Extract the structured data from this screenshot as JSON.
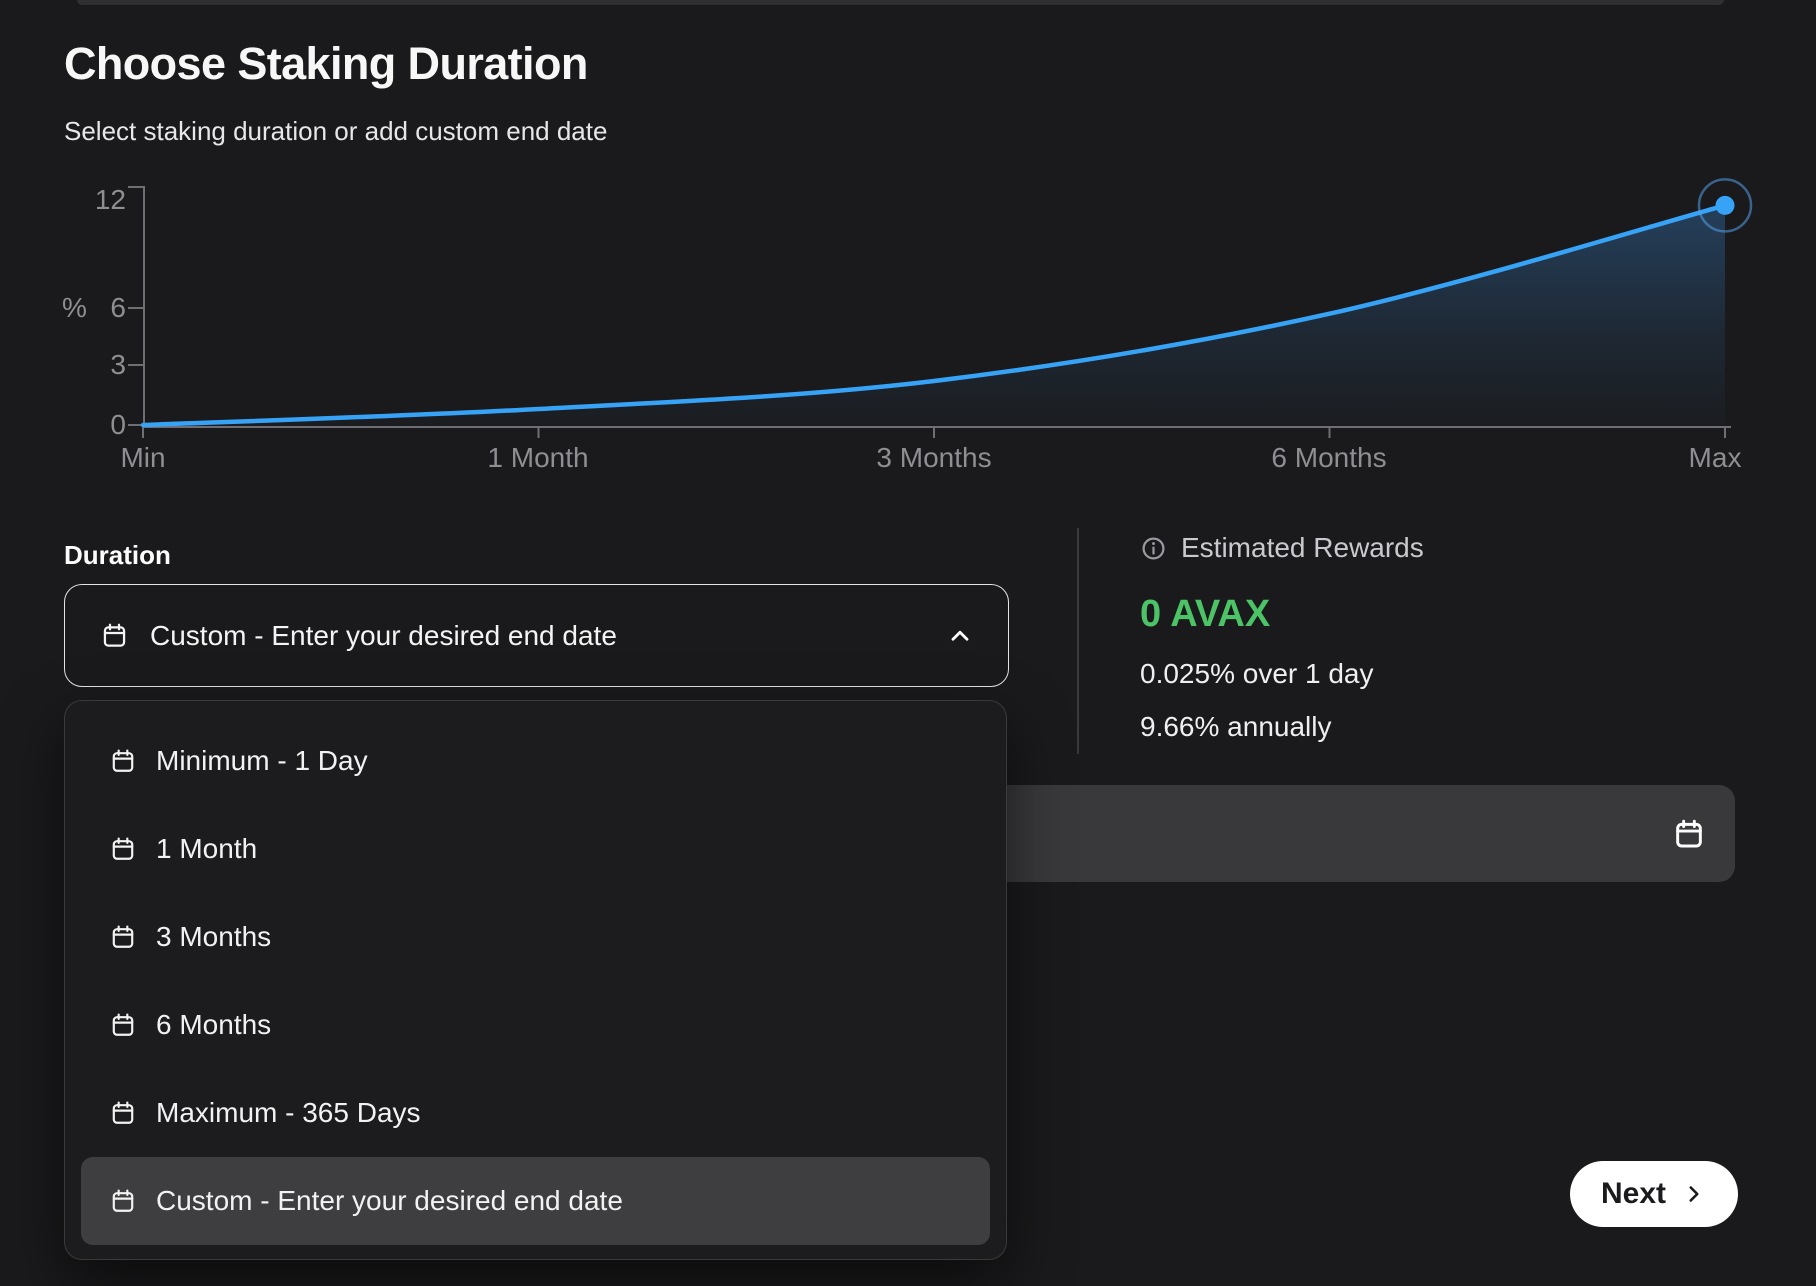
{
  "header": {
    "title": "Choose Staking Duration",
    "subtitle": "Select staking duration or add custom end date"
  },
  "chart_data": {
    "type": "line",
    "categories": [
      "Min",
      "1 Month",
      "3 Months",
      "6 Months",
      "Max"
    ],
    "values": [
      0,
      0.8,
      2.2,
      5.7,
      11.7
    ],
    "title": "",
    "xlabel": "",
    "ylabel": "%",
    "yticks": [
      0,
      3,
      6,
      12
    ],
    "ylim": [
      0,
      12
    ],
    "grid": false,
    "legend": "none",
    "line_color": "#36A3F7",
    "area_fill_color": "#3A8CDC",
    "endpoint_marker": true
  },
  "duration": {
    "label": "Duration",
    "selected_value": "Custom - Enter your desired end date"
  },
  "dropdown": {
    "options": [
      {
        "label": "Minimum - 1 Day"
      },
      {
        "label": "1 Month"
      },
      {
        "label": "3 Months"
      },
      {
        "label": "6 Months"
      },
      {
        "label": "Maximum - 365 Days"
      },
      {
        "label": "Custom - Enter your desired end date"
      }
    ],
    "selected_index": 5
  },
  "rewards": {
    "header": "Estimated Rewards",
    "amount": "0 AVAX",
    "line1": "0.025% over 1 day",
    "line2": "9.66% annually",
    "accent_green": "#4CC366"
  },
  "date_input": {
    "value": "",
    "placeholder": ""
  },
  "actions": {
    "next_label": "Next"
  },
  "colors": {
    "background": "#1A1A1C",
    "accent_blue": "#36A3F7",
    "accent_green": "#4CC366",
    "axis_gray": "#8E8E93",
    "menu_background": "#1C1C1E",
    "highlight_row": "#3E3E41",
    "input_background": "#39393B"
  }
}
